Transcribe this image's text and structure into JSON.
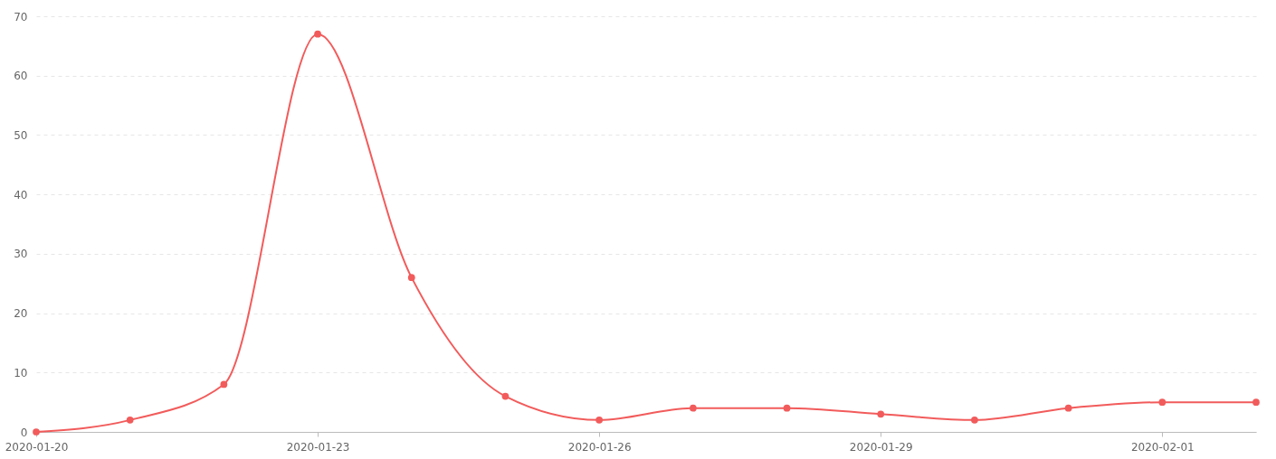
{
  "chart_data": {
    "type": "line",
    "x": [
      "2020-01-20",
      "2020-01-21",
      "2020-01-22",
      "2020-01-23",
      "2020-01-24",
      "2020-01-25",
      "2020-01-26",
      "2020-01-27",
      "2020-01-28",
      "2020-01-29",
      "2020-01-30",
      "2020-01-31",
      "2020-02-01",
      "2020-02-02"
    ],
    "series": [
      {
        "color": "#f25b5b",
        "values": [
          0,
          2,
          8,
          67,
          26,
          6,
          2,
          4,
          4,
          3,
          2,
          4,
          5,
          5
        ]
      }
    ],
    "xlim": [
      "2020-01-20",
      "2020-02-02"
    ],
    "xticks": [
      "2020-01-20",
      "2020-01-23",
      "2020-01-26",
      "2020-01-29",
      "2020-02-01"
    ],
    "ylim": [
      0,
      70
    ],
    "yticks": [
      0,
      10,
      20,
      30,
      40,
      50,
      60,
      70
    ],
    "grid": "y",
    "marker": "circle",
    "line_style": "solid"
  }
}
